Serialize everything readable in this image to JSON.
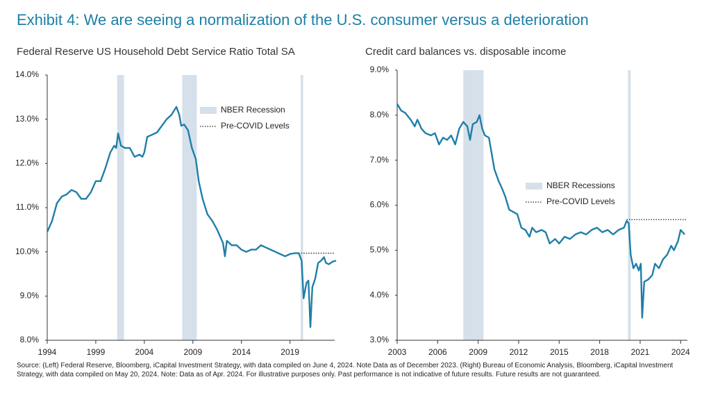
{
  "title": "Exhibit 4: We are seeing a normalization of the U.S. consumer versus a deterioration",
  "source": "Source: (Left) Federal Reserve, Bloomberg, iCapital Investment Strategy, with data compiled on June 4, 2024. Note Data as of December 2023. (Right) Bureau of Economic Analysis, Bloomberg, iCapital Investment Strategy, with data compiled on May 20, 2024. Note: Data as of Apr. 2024. For illustrative purposes only. Past performance is not indicative of future results. Future results are not guaranteed.",
  "chart_data": [
    {
      "type": "line",
      "title": "Federal Reserve US Household Debt Service Ratio Total SA",
      "x": [
        1994,
        1994.5,
        1995,
        1995.5,
        1996,
        1996.5,
        1997,
        1997.5,
        1998,
        1998.5,
        1999,
        1999.5,
        2000,
        2000.5,
        2000.9,
        2001.1,
        2001.3,
        2001.6,
        2002,
        2002.5,
        2003,
        2003.5,
        2003.8,
        2004,
        2004.3,
        2004.8,
        2005.3,
        2005.8,
        2006.3,
        2006.8,
        2007.3,
        2007.6,
        2007.8,
        2008.1,
        2008.5,
        2008.9,
        2009.3,
        2009.6,
        2010,
        2010.5,
        2011,
        2011.5,
        2011.9,
        2012.1,
        2012.3,
        2012.5,
        2013,
        2013.5,
        2014,
        2014.5,
        2015,
        2015.5,
        2016,
        2016.5,
        2017,
        2017.5,
        2018,
        2018.5,
        2019,
        2019.5,
        2019.9,
        2020.2,
        2020.4,
        2020.7,
        2020.9,
        2021.1,
        2021.3,
        2021.6,
        2021.9,
        2022.2,
        2022.5,
        2022.7,
        2023,
        2023.4,
        2023.75
      ],
      "series": [
        {
          "color": "#1f7ea8",
          "values": [
            10.45,
            10.7,
            11.1,
            11.25,
            11.3,
            11.4,
            11.35,
            11.2,
            11.2,
            11.35,
            11.6,
            11.6,
            11.9,
            12.25,
            12.4,
            12.35,
            12.68,
            12.4,
            12.35,
            12.35,
            12.15,
            12.2,
            12.15,
            12.25,
            12.6,
            12.65,
            12.7,
            12.85,
            13.0,
            13.1,
            13.28,
            13.1,
            12.85,
            12.88,
            12.75,
            12.35,
            12.1,
            11.6,
            11.2,
            10.85,
            10.7,
            10.5,
            10.3,
            10.2,
            9.9,
            10.25,
            10.15,
            10.15,
            10.05,
            10.0,
            10.05,
            10.05,
            10.15,
            10.1,
            10.05,
            10.0,
            9.95,
            9.9,
            9.95,
            9.97,
            9.97,
            9.8,
            8.95,
            9.3,
            9.35,
            8.3,
            9.2,
            9.4,
            9.75,
            9.8,
            9.88,
            9.75,
            9.72,
            9.78,
            9.8
          ]
        }
      ],
      "xlim": [
        1994,
        2023.6
      ],
      "xticks": [
        1994,
        1999,
        2004,
        2009,
        2014,
        2019
      ],
      "ylim": [
        8,
        14
      ],
      "yticks": [
        {
          "value": 8,
          "label": "8.0%"
        },
        {
          "value": 9,
          "label": "9.0%"
        },
        {
          "value": 10,
          "label": "10.0%"
        },
        {
          "value": 11,
          "label": "11.0%"
        },
        {
          "value": 12,
          "label": "12.0%"
        },
        {
          "value": 13,
          "label": "13.0%"
        },
        {
          "value": 14,
          "label": "14.0%"
        }
      ],
      "recessions": {
        "name": "NBER Recession",
        "color": "#d6e0ea",
        "spans": [
          [
            2001.2,
            2001.9
          ],
          [
            2007.9,
            2009.4
          ],
          [
            2020.1,
            2020.35
          ]
        ]
      },
      "reference": {
        "name": "Pre-COVID Levels",
        "value": 9.97,
        "from": 2019.9
      }
    },
    {
      "type": "line",
      "title": "Credit card balances vs. disposable income",
      "x": [
        2003,
        2003.3,
        2003.6,
        2004,
        2004.3,
        2004.5,
        2004.8,
        2005.1,
        2005.5,
        2005.8,
        2006.1,
        2006.4,
        2006.7,
        2007,
        2007.3,
        2007.6,
        2007.9,
        2008.2,
        2008.4,
        2008.6,
        2008.9,
        2009.1,
        2009.3,
        2009.5,
        2009.8,
        2010,
        2010.2,
        2010.5,
        2010.8,
        2011,
        2011.3,
        2011.6,
        2011.9,
        2012.2,
        2012.5,
        2012.8,
        2013,
        2013.3,
        2013.7,
        2014,
        2014.3,
        2014.7,
        2015,
        2015.4,
        2015.8,
        2016.2,
        2016.6,
        2017,
        2017.4,
        2017.8,
        2018.2,
        2018.6,
        2019,
        2019.4,
        2019.8,
        2020,
        2020.15,
        2020.3,
        2020.5,
        2020.7,
        2020.9,
        2021.05,
        2021.15,
        2021.3,
        2021.6,
        2021.9,
        2022.1,
        2022.4,
        2022.7,
        2023,
        2023.3,
        2023.5,
        2023.8,
        2024,
        2024.15,
        2024.3
      ],
      "series": [
        {
          "color": "#1f7ea8",
          "values": [
            8.25,
            8.1,
            8.05,
            7.9,
            7.75,
            7.9,
            7.7,
            7.6,
            7.55,
            7.6,
            7.35,
            7.5,
            7.45,
            7.55,
            7.35,
            7.7,
            7.85,
            7.75,
            7.45,
            7.8,
            7.85,
            8.0,
            7.7,
            7.55,
            7.5,
            7.15,
            6.8,
            6.55,
            6.35,
            6.2,
            5.9,
            5.85,
            5.8,
            5.5,
            5.45,
            5.3,
            5.5,
            5.4,
            5.45,
            5.4,
            5.15,
            5.25,
            5.15,
            5.3,
            5.25,
            5.35,
            5.4,
            5.35,
            5.45,
            5.5,
            5.4,
            5.45,
            5.35,
            5.45,
            5.5,
            5.65,
            5.6,
            4.9,
            4.6,
            4.7,
            4.55,
            4.7,
            3.5,
            4.3,
            4.35,
            4.45,
            4.7,
            4.6,
            4.8,
            4.9,
            5.1,
            5.0,
            5.2,
            5.45,
            5.4,
            5.35
          ]
        }
      ],
      "xlim": [
        2003,
        2024.5
      ],
      "xticks": [
        2003,
        2006,
        2009,
        2012,
        2015,
        2018,
        2021,
        2024
      ],
      "ylim": [
        3,
        9
      ],
      "yticks": [
        {
          "value": 3,
          "label": "3.0%"
        },
        {
          "value": 4,
          "label": "4.0%"
        },
        {
          "value": 5,
          "label": "5.0%"
        },
        {
          "value": 6,
          "label": "6.0%"
        },
        {
          "value": 7,
          "label": "7.0%"
        },
        {
          "value": 8,
          "label": "8.0%"
        },
        {
          "value": 9,
          "label": "9.0%"
        }
      ],
      "recessions": {
        "name": "NBER Recessions",
        "color": "#d6e0ea",
        "spans": [
          [
            2007.9,
            2009.4
          ],
          [
            2020.1,
            2020.3
          ]
        ]
      },
      "reference": {
        "name": "Pre-COVID Levels",
        "value": 5.68,
        "from": 2020
      }
    }
  ]
}
